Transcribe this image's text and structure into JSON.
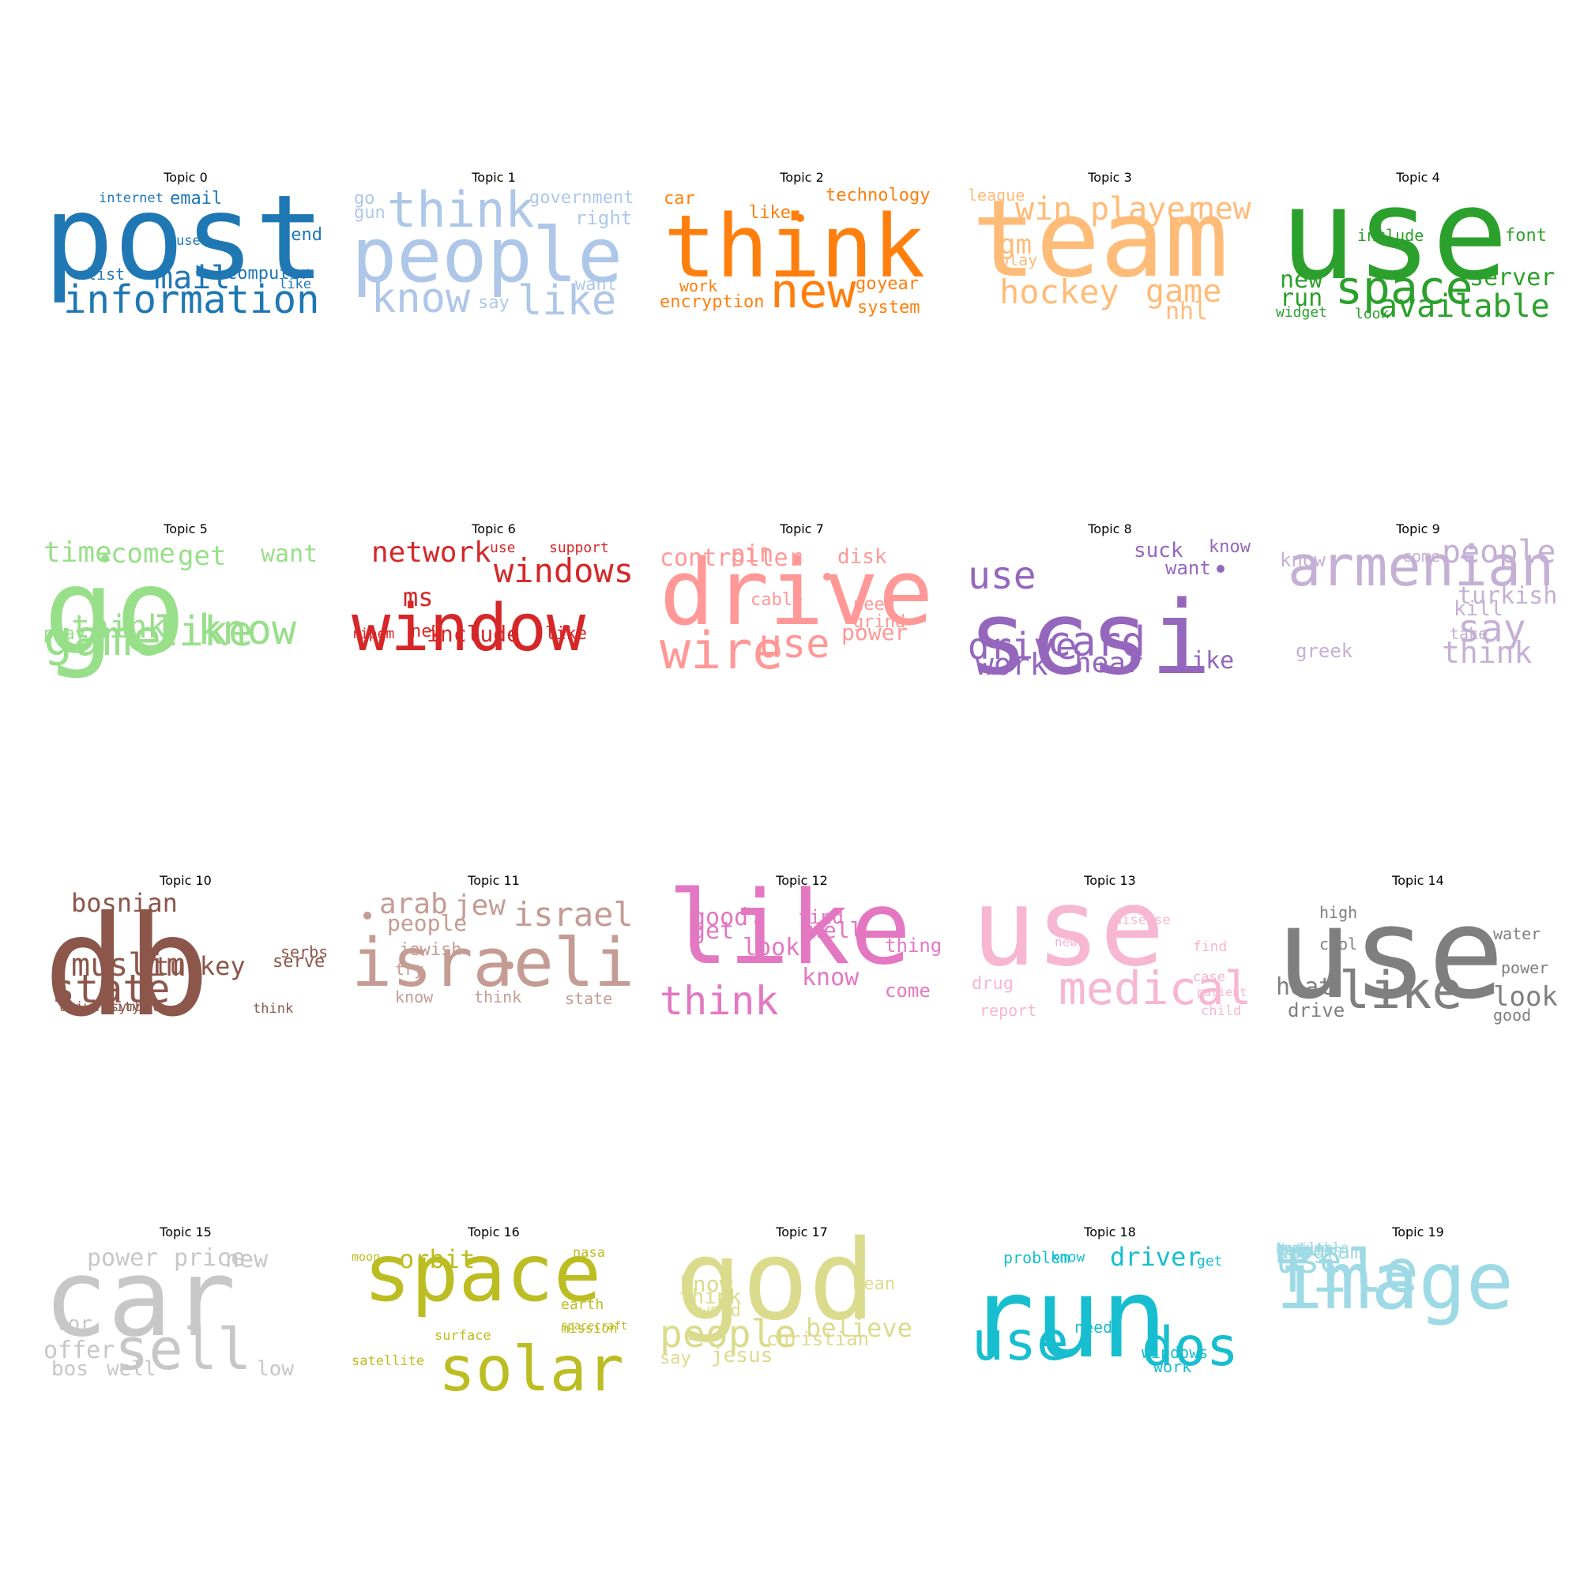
{
  "topics": [
    {
      "title": "Topic 0",
      "color": "#1f77b4",
      "words": [
        {
          "text": "post",
          "weight": 150
        },
        {
          "text": "information",
          "weight": 55
        },
        {
          "text": "mail",
          "weight": 40
        },
        {
          "text": "email",
          "weight": 22
        },
        {
          "text": "send",
          "weight": 22
        },
        {
          "text": "computer",
          "weight": 22
        },
        {
          "text": "list",
          "weight": 20
        },
        {
          "text": "internet",
          "weight": 17
        },
        {
          "text": "use",
          "weight": 17
        },
        {
          "text": "like",
          "weight": 17
        }
      ]
    },
    {
      "title": "Topic 1",
      "color": "#aec7e8",
      "words": [
        {
          "text": "people",
          "weight": 95
        },
        {
          "text": "think",
          "weight": 62
        },
        {
          "text": "know",
          "weight": 52
        },
        {
          "text": "like",
          "weight": 52
        },
        {
          "text": "government",
          "weight": 24
        },
        {
          "text": "right",
          "weight": 24
        },
        {
          "text": "want",
          "weight": 22
        },
        {
          "text": "go",
          "weight": 22
        },
        {
          "text": "gun",
          "weight": 22
        },
        {
          "text": "say",
          "weight": 22
        }
      ]
    },
    {
      "title": "Topic 2",
      "color": "#ff7f0e",
      "words": [
        {
          "text": "think",
          "weight": 110
        },
        {
          "text": "new",
          "weight": 60
        },
        {
          "text": "technology",
          "weight": 22
        },
        {
          "text": "car",
          "weight": 22
        },
        {
          "text": "like",
          "weight": 22
        },
        {
          "text": "encryption",
          "weight": 22
        },
        {
          "text": "work",
          "weight": 20
        },
        {
          "text": "system",
          "weight": 22
        },
        {
          "text": "go",
          "weight": 22
        },
        {
          "text": "year",
          "weight": 22
        }
      ]
    },
    {
      "title": "Topic 3",
      "color": "#ffbb78",
      "words": [
        {
          "text": "team",
          "weight": 135
        },
        {
          "text": "win",
          "weight": 40
        },
        {
          "text": "player",
          "weight": 40
        },
        {
          "text": "new",
          "weight": 40
        },
        {
          "text": "hockey",
          "weight": 42
        },
        {
          "text": "game",
          "weight": 40
        },
        {
          "text": "gm",
          "weight": 34
        },
        {
          "text": "nhl",
          "weight": 30
        },
        {
          "text": "league",
          "weight": 20
        },
        {
          "text": "play",
          "weight": 20
        }
      ]
    },
    {
      "title": "Topic 4",
      "color": "#2ca02c",
      "words": [
        {
          "text": "use",
          "weight": 160
        },
        {
          "text": "space",
          "weight": 58
        },
        {
          "text": "available",
          "weight": 40
        },
        {
          "text": "server",
          "weight": 32
        },
        {
          "text": "new",
          "weight": 30
        },
        {
          "text": "run",
          "weight": 30
        },
        {
          "text": "font",
          "weight": 22
        },
        {
          "text": "include",
          "weight": 20
        },
        {
          "text": "widget",
          "weight": 18
        },
        {
          "text": "look",
          "weight": 18
        }
      ]
    },
    {
      "title": "Topic 5",
      "color": "#98df8a",
      "words": [
        {
          "text": "go",
          "weight": 150
        },
        {
          "text": "game",
          "weight": 62
        },
        {
          "text": "know",
          "weight": 52
        },
        {
          "text": "like",
          "weight": 52
        },
        {
          "text": "think",
          "weight": 40
        },
        {
          "text": "time",
          "weight": 36
        },
        {
          "text": "come",
          "weight": 34
        },
        {
          "text": "get",
          "weight": 34
        },
        {
          "text": "want",
          "weight": 30
        },
        {
          "text": "play",
          "weight": 22
        }
      ]
    },
    {
      "title": "Topic 6",
      "color": "#d62728",
      "words": [
        {
          "text": "window",
          "weight": 82
        },
        {
          "text": "windows",
          "weight": 76
        },
        {
          "text": "network",
          "weight": 36
        },
        {
          "text": "ms",
          "weight": 32
        },
        {
          "text": "include",
          "weight": 28
        },
        {
          "text": "new",
          "weight": 22
        },
        {
          "text": "like",
          "weight": 22
        },
        {
          "text": "use",
          "weight": 18
        },
        {
          "text": "support",
          "weight": 18
        },
        {
          "text": "ripem",
          "weight": 18
        }
      ]
    },
    {
      "title": "Topic 7",
      "color": "#ff9896",
      "words": [
        {
          "text": "drive",
          "weight": 115
        },
        {
          "text": "wire",
          "weight": 65
        },
        {
          "text": "use",
          "weight": 50
        },
        {
          "text": "power",
          "weight": 28
        },
        {
          "text": "pin",
          "weight": 30
        },
        {
          "text": "controller",
          "weight": 30
        },
        {
          "text": "disk",
          "weight": 26
        },
        {
          "text": "cable",
          "weight": 22
        },
        {
          "text": "need",
          "weight": 22
        },
        {
          "text": "grind",
          "weight": 22
        }
      ]
    },
    {
      "title": "Topic 8",
      "color": "#9467bd",
      "words": [
        {
          "text": "scsi",
          "weight": 128
        },
        {
          "text": "card",
          "weight": 52
        },
        {
          "text": "use",
          "weight": 48
        },
        {
          "text": "know",
          "weight": 52
        },
        {
          "text": "drive",
          "weight": 46
        },
        {
          "text": "work",
          "weight": 38
        },
        {
          "text": "hear",
          "weight": 36
        },
        {
          "text": "like",
          "weight": 30
        },
        {
          "text": "suck",
          "weight": 26
        },
        {
          "text": "want",
          "weight": 24
        }
      ]
    },
    {
      "title": "Topic 9",
      "color": "#c5b0d5",
      "words": [
        {
          "text": "armenian",
          "weight": 70
        },
        {
          "text": "people",
          "weight": 62
        },
        {
          "text": "turkish",
          "weight": 52
        },
        {
          "text": "say",
          "weight": 48
        },
        {
          "text": "think",
          "weight": 38
        },
        {
          "text": "greek",
          "weight": 24
        },
        {
          "text": "know",
          "weight": 24
        },
        {
          "text": "kill",
          "weight": 26
        },
        {
          "text": "take",
          "weight": 20
        },
        {
          "text": "come",
          "weight": 20
        }
      ]
    },
    {
      "title": "Topic 10",
      "color": "#8c564b",
      "words": [
        {
          "text": "db",
          "weight": 175
        },
        {
          "text": "state",
          "weight": 50
        },
        {
          "text": "turkey",
          "weight": 32
        },
        {
          "text": "serve",
          "weight": 32
        },
        {
          "text": "muslim",
          "weight": 40
        },
        {
          "text": "bosnian",
          "weight": 32
        },
        {
          "text": "serbs",
          "weight": 32
        },
        {
          "text": "university",
          "weight": 17
        },
        {
          "text": "symbol",
          "weight": 17
        },
        {
          "text": "think",
          "weight": 17
        }
      ]
    },
    {
      "title": "Topic 11",
      "color": "#c49c94",
      "words": [
        {
          "text": "israeli",
          "weight": 85
        },
        {
          "text": "israel",
          "weight": 82
        },
        {
          "text": "arab",
          "weight": 36
        },
        {
          "text": "jew",
          "weight": 36
        },
        {
          "text": "people",
          "weight": 28
        },
        {
          "text": "jewish",
          "weight": 22
        },
        {
          "text": "try",
          "weight": 20
        },
        {
          "text": "know",
          "weight": 20
        },
        {
          "text": "think",
          "weight": 20
        },
        {
          "text": "state",
          "weight": 20
        }
      ]
    },
    {
      "title": "Topic 12",
      "color": "#e377c2",
      "words": [
        {
          "text": "like",
          "weight": 128
        },
        {
          "text": "think",
          "weight": 50
        },
        {
          "text": "look",
          "weight": 30
        },
        {
          "text": "thing",
          "weight": 26
        },
        {
          "text": "good",
          "weight": 30
        },
        {
          "text": "get",
          "weight": 30
        },
        {
          "text": "find",
          "weight": 24
        },
        {
          "text": "well",
          "weight": 28
        },
        {
          "text": "know",
          "weight": 30
        },
        {
          "text": "come",
          "weight": 24
        }
      ]
    },
    {
      "title": "Topic 13",
      "color": "#f7b6d2",
      "words": [
        {
          "text": "use",
          "weight": 135
        },
        {
          "text": "medical",
          "weight": 68
        },
        {
          "text": "drug",
          "weight": 22
        },
        {
          "text": "report",
          "weight": 20
        },
        {
          "text": "find",
          "weight": 18
        },
        {
          "text": "new",
          "weight": 16
        },
        {
          "text": "disease",
          "weight": 17
        },
        {
          "text": "case",
          "weight": 17
        },
        {
          "text": "patient",
          "weight": 17
        },
        {
          "text": "child",
          "weight": 17
        }
      ]
    },
    {
      "title": "Topic 14",
      "color": "#7f7f7f",
      "words": [
        {
          "text": "use",
          "weight": 160
        },
        {
          "text": "like",
          "weight": 65
        },
        {
          "text": "look",
          "weight": 46
        },
        {
          "text": "heat",
          "weight": 30
        },
        {
          "text": "drive",
          "weight": 24
        },
        {
          "text": "high",
          "weight": 20
        },
        {
          "text": "cool",
          "weight": 20
        },
        {
          "text": "water",
          "weight": 20
        },
        {
          "text": "power",
          "weight": 20
        },
        {
          "text": "good",
          "weight": 20
        }
      ]
    },
    {
      "title": "Topic 15",
      "color": "#c7c7c7",
      "words": [
        {
          "text": "car",
          "weight": 135
        },
        {
          "text": "sell",
          "weight": 72
        },
        {
          "text": "offer",
          "weight": 30
        },
        {
          "text": "power",
          "weight": 30
        },
        {
          "text": "price",
          "weight": 30
        },
        {
          "text": "new",
          "weight": 30
        },
        {
          "text": "tor",
          "weight": 26
        },
        {
          "text": "bos",
          "weight": 26
        },
        {
          "text": "well",
          "weight": 26
        },
        {
          "text": "low",
          "weight": 26
        }
      ]
    },
    {
      "title": "Topic 16",
      "color": "#bcbd22",
      "words": [
        {
          "text": "space",
          "weight": 100
        },
        {
          "text": "solar",
          "weight": 78
        },
        {
          "text": "orbit",
          "weight": 32
        },
        {
          "text": "spacecraft",
          "weight": 18
        },
        {
          "text": "earth",
          "weight": 18
        },
        {
          "text": "mission",
          "weight": 17
        },
        {
          "text": "moon",
          "weight": 15
        },
        {
          "text": "nasa",
          "weight": 17
        },
        {
          "text": "satellite",
          "weight": 17
        },
        {
          "text": "surface",
          "weight": 17
        }
      ]
    },
    {
      "title": "Topic 17",
      "color": "#dbdb8d",
      "words": [
        {
          "text": "god",
          "weight": 140
        },
        {
          "text": "people",
          "weight": 48
        },
        {
          "text": "believe",
          "weight": 32
        },
        {
          "text": "jesus",
          "weight": 26
        },
        {
          "text": "know",
          "weight": 28
        },
        {
          "text": "think",
          "weight": 26
        },
        {
          "text": "word",
          "weight": 22
        },
        {
          "text": "mean",
          "weight": 22
        },
        {
          "text": "christian",
          "weight": 24
        },
        {
          "text": "say",
          "weight": 22
        }
      ]
    },
    {
      "title": "Topic 18",
      "color": "#17becf",
      "words": [
        {
          "text": "run",
          "weight": 140
        },
        {
          "text": "use",
          "weight": 68
        },
        {
          "text": "dos",
          "weight": 68
        },
        {
          "text": "driver",
          "weight": 32
        },
        {
          "text": "problem",
          "weight": 20
        },
        {
          "text": "windows",
          "weight": 20
        },
        {
          "text": "work",
          "weight": 20
        },
        {
          "text": "get",
          "weight": 18
        },
        {
          "text": "know",
          "weight": 18
        },
        {
          "text": "need",
          "weight": 20
        }
      ]
    },
    {
      "title": "Topic 19",
      "color": "#9edae5",
      "words": [
        {
          "text": "image",
          "weight": 100
        },
        {
          "text": "file",
          "weight": 75
        },
        {
          "text": "use",
          "weight": 46
        },
        {
          "text": "program",
          "weight": 26
        },
        {
          "text": "key",
          "weight": 26
        },
        {
          "text": "datum",
          "weight": 20
        },
        {
          "text": "version",
          "weight": 20
        },
        {
          "text": "available",
          "weight": 17
        },
        {
          "text": "know",
          "weight": 17
        },
        {
          "text": "include",
          "weight": 16
        }
      ]
    }
  ]
}
